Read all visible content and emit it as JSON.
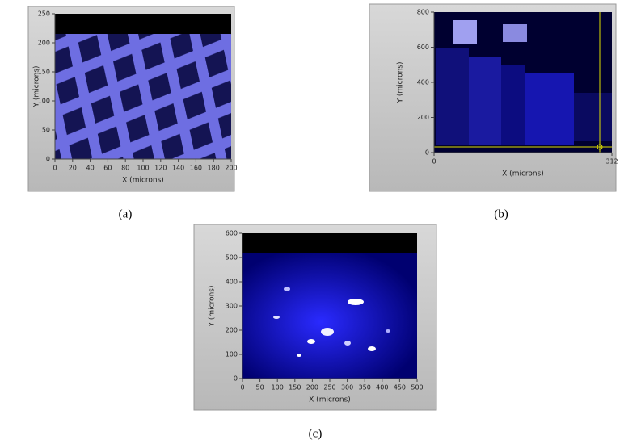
{
  "chart_data": [
    {
      "type": "image",
      "caption": "(a)",
      "xlabel": "X (microns)",
      "ylabel": "Y (microns)",
      "xlim": [
        0,
        200
      ],
      "ylim": [
        0,
        250
      ],
      "xticks": [
        0,
        20,
        40,
        60,
        80,
        100,
        120,
        140,
        160,
        180,
        200
      ],
      "yticks": [
        0,
        50,
        100,
        150,
        200,
        250
      ]
    },
    {
      "type": "image",
      "caption": "(b)",
      "xlabel": "X (microns)",
      "ylabel": "Y (microns)",
      "xlim": [
        0,
        312
      ],
      "ylim": [
        0,
        800
      ],
      "xticks": [
        0,
        312
      ],
      "yticks": [
        0,
        200,
        400,
        600,
        800
      ]
    },
    {
      "type": "image",
      "caption": "(c)",
      "xlabel": "X (microns)",
      "ylabel": "Y (microns)",
      "xlim": [
        0,
        500
      ],
      "ylim": [
        0,
        600
      ],
      "xticks": [
        0,
        50,
        100,
        150,
        200,
        250,
        300,
        350,
        400,
        450,
        500
      ],
      "yticks": [
        0,
        100,
        200,
        300,
        400,
        500,
        600
      ]
    }
  ]
}
